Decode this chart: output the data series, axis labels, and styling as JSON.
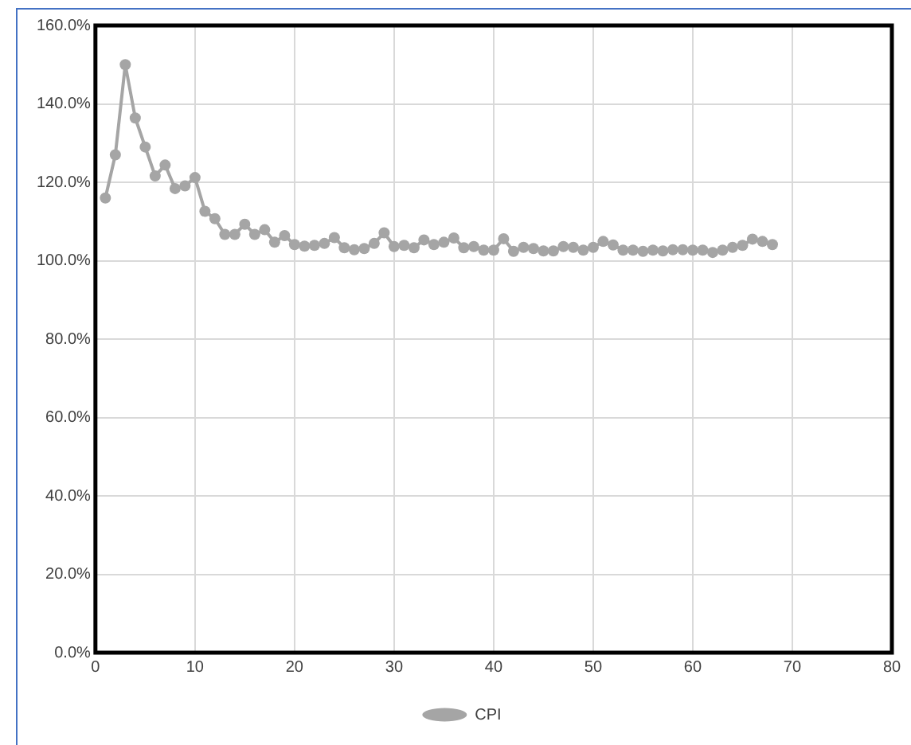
{
  "chart_data": {
    "type": "line",
    "x": [
      1,
      2,
      3,
      4,
      5,
      6,
      7,
      8,
      9,
      10,
      11,
      12,
      13,
      14,
      15,
      16,
      17,
      18,
      19,
      20,
      21,
      22,
      23,
      24,
      25,
      26,
      27,
      28,
      29,
      30,
      31,
      32,
      33,
      34,
      35,
      36,
      37,
      38,
      39,
      40,
      41,
      42,
      43,
      44,
      45,
      46,
      47,
      48,
      49,
      50,
      51,
      52,
      53,
      54,
      55,
      56,
      57,
      58,
      59,
      60,
      61,
      62,
      63,
      64,
      65,
      66,
      67,
      68
    ],
    "series": [
      {
        "name": "CPI",
        "color": "#a5a5a5",
        "values": [
          116.0,
          127.0,
          150.0,
          136.4,
          129.0,
          121.6,
          124.4,
          118.4,
          119.1,
          121.2,
          112.6,
          110.7,
          106.7,
          106.7,
          109.3,
          106.7,
          107.9,
          104.7,
          106.4,
          104.1,
          103.7,
          103.9,
          104.4,
          105.9,
          103.3,
          102.8,
          103.1,
          104.4,
          107.1,
          103.6,
          103.9,
          103.3,
          105.3,
          104.1,
          104.7,
          105.8,
          103.3,
          103.6,
          102.7,
          102.7,
          105.6,
          102.4,
          103.4,
          103.1,
          102.5,
          102.5,
          103.6,
          103.4,
          102.7,
          103.4,
          104.9,
          104.0,
          102.7,
          102.7,
          102.4,
          102.7,
          102.5,
          102.8,
          102.8,
          102.7,
          102.7,
          102.1,
          102.7,
          103.4,
          103.9,
          105.5,
          104.9,
          104.1
        ]
      }
    ],
    "xlim": [
      0,
      80
    ],
    "xticks": [
      0,
      10,
      20,
      30,
      40,
      50,
      60,
      70,
      80
    ],
    "ylim": [
      0,
      160
    ],
    "yticks": [
      {
        "value": 0,
        "label": "0.0%"
      },
      {
        "value": 20,
        "label": "20.0%"
      },
      {
        "value": 40,
        "label": "40.0%"
      },
      {
        "value": 60,
        "label": "60.0%"
      },
      {
        "value": 80,
        "label": "80.0%"
      },
      {
        "value": 100,
        "label": "100.0%"
      },
      {
        "value": 120,
        "label": "120.0%"
      },
      {
        "value": 140,
        "label": "140.0%"
      },
      {
        "value": 160,
        "label": "160.0%"
      }
    ],
    "grid": true,
    "legend": "bottom",
    "marker": "circle",
    "line_style": "solid"
  }
}
